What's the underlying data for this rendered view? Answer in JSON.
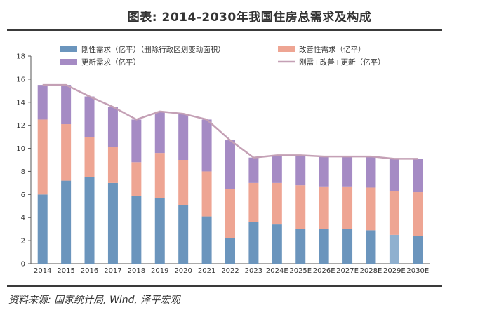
{
  "title": "图表: 2014-2030年我国住房总需求及构成",
  "source": "资料来源: 国家统计局, Wind, 泽平宏观",
  "chart_data": {
    "type": "bar",
    "stacked": true,
    "categories": [
      "2014",
      "2015",
      "2016",
      "2017",
      "2018",
      "2019",
      "2020",
      "2021",
      "2022",
      "2023",
      "2024E",
      "2025E",
      "2026E",
      "2027E",
      "2028E",
      "2029E",
      "2030E"
    ],
    "ylim": [
      0,
      18
    ],
    "yticks": [
      "0",
      "2",
      "4",
      "6",
      "8",
      "10",
      "12",
      "14",
      "16",
      "18"
    ],
    "series": [
      {
        "name": "刚性需求（亿平）（删除行政区划变动面积）",
        "color": "#6b95bd",
        "values": [
          6.0,
          7.2,
          7.5,
          7.0,
          5.9,
          5.7,
          5.1,
          4.1,
          2.2,
          3.6,
          3.4,
          3.0,
          3.0,
          3.0,
          2.9,
          2.5,
          2.4
        ]
      },
      {
        "name": "改善性需求（亿平）",
        "color": "#eea593",
        "values": [
          6.5,
          4.9,
          3.5,
          3.1,
          2.9,
          3.9,
          3.9,
          3.9,
          4.3,
          3.4,
          3.6,
          3.8,
          3.7,
          3.7,
          3.7,
          3.8,
          3.8
        ]
      },
      {
        "name": "更新需求（亿平）",
        "color": "#a58bc4",
        "values": [
          3.0,
          3.4,
          3.5,
          3.5,
          3.7,
          3.6,
          4.0,
          4.5,
          4.2,
          2.2,
          2.4,
          2.6,
          2.6,
          2.6,
          2.7,
          2.8,
          2.9
        ]
      }
    ],
    "line": {
      "name": "刚需+改善+更新（亿平）",
      "color": "#c4a0b5",
      "values": [
        15.5,
        15.5,
        14.5,
        13.6,
        12.5,
        13.2,
        13.0,
        12.5,
        10.7,
        9.2,
        9.4,
        9.4,
        9.3,
        9.3,
        9.3,
        9.1,
        9.1
      ]
    }
  }
}
